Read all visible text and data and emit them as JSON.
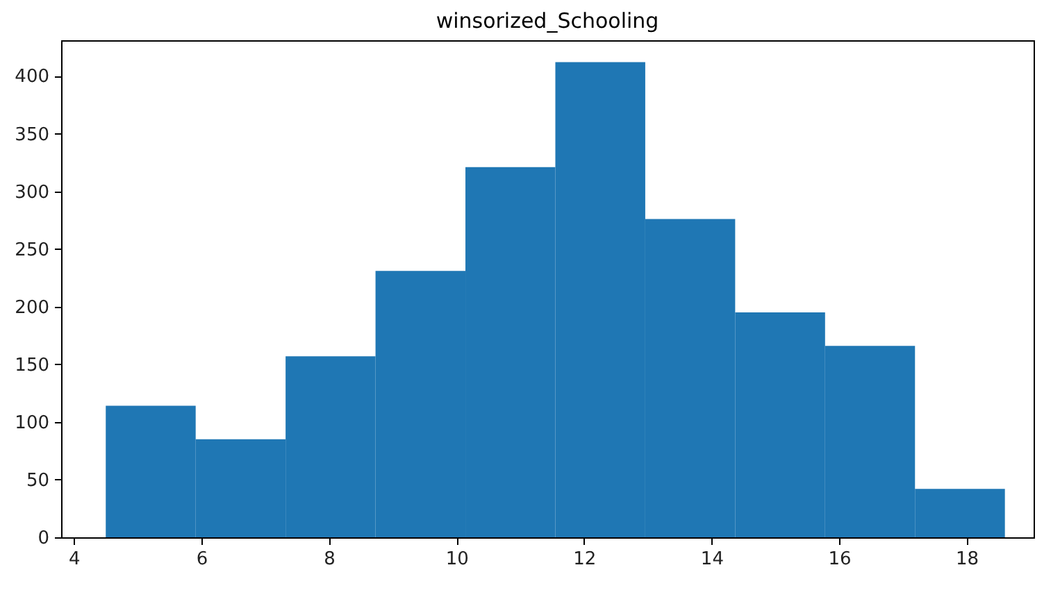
{
  "chart_data": {
    "type": "histogram",
    "title": "winsorized_Schooling",
    "bins": [
      4.5,
      5.91,
      7.32,
      8.73,
      10.14,
      11.55,
      12.96,
      14.37,
      15.78,
      17.19,
      18.6
    ],
    "values": [
      114,
      85,
      157,
      231,
      321,
      412,
      276,
      195,
      166,
      42
    ],
    "color": "#1f77b4",
    "xlim": [
      3.8,
      19.05
    ],
    "xticks": [
      4,
      6,
      8,
      10,
      12,
      14,
      16,
      18
    ],
    "ylim": [
      0,
      431
    ],
    "yticks": [
      0,
      50,
      100,
      150,
      200,
      250,
      300,
      350,
      400
    ],
    "grid": false
  }
}
